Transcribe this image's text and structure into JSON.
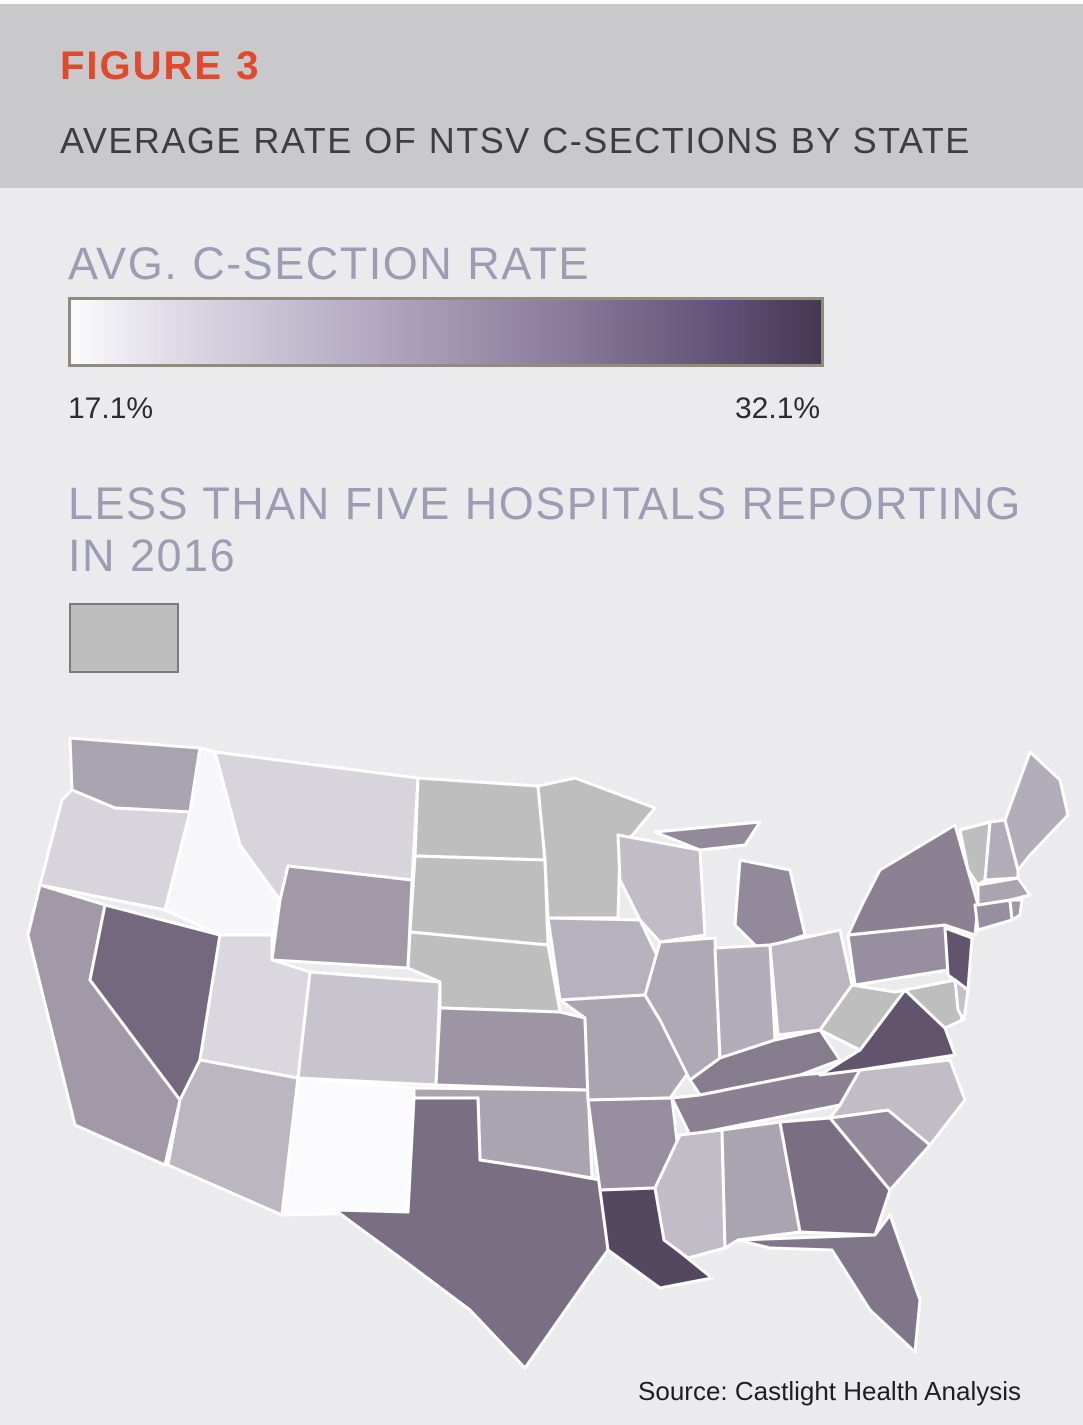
{
  "header": {
    "figure_label": "FIGURE 3",
    "title": "AVERAGE RATE OF NTSV C-SECTIONS BY STATE"
  },
  "legend": {
    "title": "AVG. C-SECTION RATE",
    "min_label": "17.1%",
    "max_label": "32.1%",
    "min_value": 17.1,
    "max_value": 32.1,
    "low_color": "#fbfbfd",
    "high_color": "#463752"
  },
  "no_data": {
    "title": "LESS THAN FIVE HOSPITALS REPORTING IN 2016",
    "color": "#bebebe"
  },
  "map": {
    "region": "United States (contiguous)",
    "states": [
      {
        "code": "WA",
        "shade": 0.45
      },
      {
        "code": "OR",
        "shade": 0.2
      },
      {
        "code": "CA",
        "shade": 0.5
      },
      {
        "code": "NV",
        "shade": 0.75
      },
      {
        "code": "ID",
        "shade": 0.02
      },
      {
        "code": "MT",
        "shade": 0.2
      },
      {
        "code": "WY",
        "shade": 0.5
      },
      {
        "code": "UT",
        "shade": 0.18
      },
      {
        "code": "CO",
        "shade": 0.28
      },
      {
        "code": "AZ",
        "shade": 0.35
      },
      {
        "code": "NM",
        "shade": 0.0
      },
      {
        "code": "ND",
        "shade": null
      },
      {
        "code": "SD",
        "shade": null
      },
      {
        "code": "NE",
        "shade": null
      },
      {
        "code": "KS",
        "shade": 0.52
      },
      {
        "code": "OK",
        "shade": 0.45
      },
      {
        "code": "TX",
        "shade": 0.72
      },
      {
        "code": "MN",
        "shade": null
      },
      {
        "code": "IA",
        "shade": 0.38
      },
      {
        "code": "MO",
        "shade": 0.45
      },
      {
        "code": "AR",
        "shade": 0.55
      },
      {
        "code": "LA",
        "shade": 0.92
      },
      {
        "code": "WI",
        "shade": 0.32
      },
      {
        "code": "IL",
        "shade": 0.42
      },
      {
        "code": "MI",
        "shade": 0.58
      },
      {
        "code": "IN",
        "shade": 0.4
      },
      {
        "code": "OH",
        "shade": 0.35
      },
      {
        "code": "KY",
        "shade": 0.65
      },
      {
        "code": "TN",
        "shade": 0.62
      },
      {
        "code": "MS",
        "shade": 0.32
      },
      {
        "code": "AL",
        "shade": 0.45
      },
      {
        "code": "GA",
        "shade": 0.72
      },
      {
        "code": "FL",
        "shade": 0.68
      },
      {
        "code": "SC",
        "shade": 0.58
      },
      {
        "code": "NC",
        "shade": 0.32
      },
      {
        "code": "VA",
        "shade": 0.85
      },
      {
        "code": "WV",
        "shade": null
      },
      {
        "code": "PA",
        "shade": 0.55
      },
      {
        "code": "NY",
        "shade": 0.62
      },
      {
        "code": "NJ",
        "shade": 0.85
      },
      {
        "code": "MD",
        "shade": null
      },
      {
        "code": "DE",
        "shade": 0.3
      },
      {
        "code": "CT",
        "shade": 0.55
      },
      {
        "code": "RI",
        "shade": 0.5
      },
      {
        "code": "MA",
        "shade": 0.45
      },
      {
        "code": "VT",
        "shade": null
      },
      {
        "code": "NH",
        "shade": 0.4
      },
      {
        "code": "ME",
        "shade": 0.4
      }
    ]
  },
  "source": "Source: Castlight Health Analysis"
}
